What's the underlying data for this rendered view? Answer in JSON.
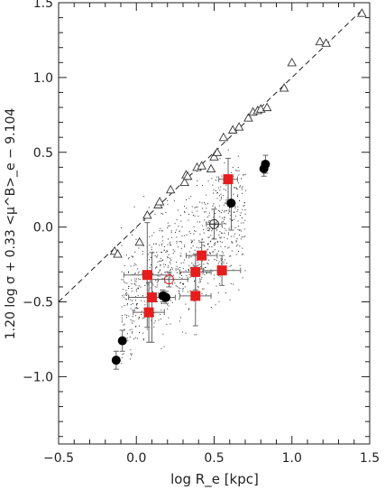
{
  "chart_data": {
    "type": "scatter",
    "title": "",
    "xlabel": "log R_e [kpc]",
    "ylabel": "1.20 log σ + 0.33 <μ^B>_e − 9.104",
    "xlim": [
      -0.5,
      1.5
    ],
    "ylim": [
      -1.45,
      1.5
    ],
    "x_ticks": [
      -0.5,
      0.0,
      0.5,
      1.0,
      1.5
    ],
    "x_tick_labels": [
      "−0.5",
      "0.0",
      "0.5",
      "1.0",
      "1.5"
    ],
    "y_ticks": [
      -1.0,
      -0.5,
      0.0,
      0.5,
      1.0,
      1.5
    ],
    "y_tick_labels": [
      "−1.0",
      "−0.5",
      "0.0",
      "0.5",
      "1.0",
      "1.5"
    ],
    "grid": false,
    "legend": "none",
    "colors": {
      "axes": "#222222",
      "squares": "#e41e1e",
      "circles": "#000000",
      "cloud": "#2a2a2a",
      "errorbars": "#666666"
    },
    "reference_line": {
      "style": "dashed",
      "x": [
        -0.5,
        1.45
      ],
      "y": [
        -0.5,
        1.45
      ]
    },
    "series": [
      {
        "marker": "open-triangle",
        "x": [
          -0.14,
          -0.12,
          0.02,
          0.07,
          0.14,
          0.15,
          0.22,
          0.31,
          0.32,
          0.33,
          0.39,
          0.42,
          0.48,
          0.5,
          0.52,
          0.56,
          0.62,
          0.66,
          0.72,
          0.75,
          0.78,
          0.8,
          0.84,
          0.95,
          1.0,
          1.18,
          1.22,
          1.45
        ],
        "y": [
          -0.16,
          -0.18,
          -0.1,
          0.08,
          0.15,
          0.17,
          0.25,
          0.3,
          0.35,
          0.34,
          0.4,
          0.41,
          0.39,
          0.47,
          0.5,
          0.6,
          0.65,
          0.67,
          0.73,
          0.77,
          0.78,
          0.79,
          0.8,
          0.93,
          1.1,
          1.24,
          1.23,
          1.43
        ]
      },
      {
        "marker": "filled-circle",
        "x": [
          -0.13,
          -0.09,
          0.17,
          0.19,
          0.61,
          0.82,
          0.83
        ],
        "y": [
          -0.89,
          -0.76,
          -0.46,
          -0.47,
          0.16,
          0.39,
          0.42
        ],
        "yerr": [
          0.06,
          0.07,
          0.04,
          0.04,
          0.18,
          0.05,
          0.06
        ]
      },
      {
        "marker": "filled-square",
        "x": [
          0.07,
          0.08,
          0.1,
          0.38,
          0.38,
          0.42,
          0.55,
          0.59
        ],
        "y": [
          -0.32,
          -0.57,
          -0.47,
          -0.3,
          -0.46,
          -0.19,
          -0.29,
          0.32
        ],
        "xerr": [
          0.15,
          0.1,
          0.15,
          0.1,
          0.1,
          0.1,
          0.12,
          0.06
        ],
        "yerr": [
          0.35,
          0.2,
          0.3,
          0.12,
          0.2,
          0.09,
          0.1,
          0.14
        ]
      },
      {
        "marker": "open-circle",
        "x": [
          0.21
        ],
        "y": [
          -0.35
        ],
        "xerr": [
          0.12
        ],
        "yerr": [
          0.05
        ]
      },
      {
        "marker": "circle-cross",
        "x": [
          0.5
        ],
        "y": [
          0.02
        ],
        "xerr": [
          0.05
        ],
        "yerr": [
          0.1
        ]
      }
    ],
    "cloud": {
      "marker": "dot",
      "count": 850,
      "x_range": [
        -0.1,
        0.7
      ],
      "center": [
        0.25,
        -0.25
      ],
      "slope": 0.85,
      "scatter_sigma": 0.2
    }
  }
}
